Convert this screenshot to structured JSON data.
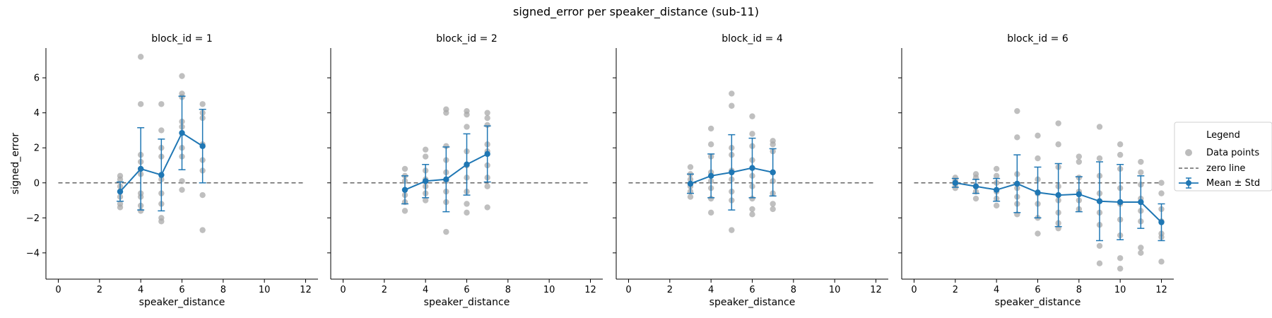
{
  "figure": {
    "title": "signed_error per speaker_distance (sub-11)"
  },
  "legend": {
    "title": "Legend",
    "placement": "right-center",
    "items": [
      "Data points",
      "zero line",
      "Mean ± Std"
    ]
  },
  "colors": {
    "points": "#a6a6a6",
    "mean": "#1f77b4",
    "zero_line": "#666666"
  },
  "chart_data": [
    {
      "type": "scatter",
      "title": "block_id = 1",
      "xlabel": "speaker_distance",
      "ylabel": "signed_error",
      "xlim": [
        -0.6,
        12.6
      ],
      "ylim": [
        -5.5,
        7.7
      ],
      "xticks": [
        0,
        2,
        4,
        6,
        8,
        10,
        12
      ],
      "yticks": [
        -4,
        -2,
        0,
        2,
        4,
        6
      ],
      "zero_line": 0,
      "points": [
        [
          3,
          0.4
        ],
        [
          3,
          0.2
        ],
        [
          3,
          -0.2
        ],
        [
          3,
          -0.5
        ],
        [
          3,
          -0.8
        ],
        [
          3,
          -1.2
        ],
        [
          3,
          -1.4
        ],
        [
          4,
          7.2
        ],
        [
          4,
          4.5
        ],
        [
          4,
          1.6
        ],
        [
          4,
          1.2
        ],
        [
          4,
          0.8
        ],
        [
          4,
          0.5
        ],
        [
          4,
          -0.6
        ],
        [
          4,
          -0.8
        ],
        [
          4,
          -1.3
        ],
        [
          4,
          -1.6
        ],
        [
          5,
          4.5
        ],
        [
          5,
          3.0
        ],
        [
          5,
          2.0
        ],
        [
          5,
          1.5
        ],
        [
          5,
          0.2
        ],
        [
          5,
          -0.6
        ],
        [
          5,
          -1.2
        ],
        [
          5,
          -2.0
        ],
        [
          5,
          -2.2
        ],
        [
          6,
          6.1
        ],
        [
          6,
          5.1
        ],
        [
          6,
          4.9
        ],
        [
          6,
          3.5
        ],
        [
          6,
          3.2
        ],
        [
          6,
          2.0
        ],
        [
          6,
          1.5
        ],
        [
          6,
          0.1
        ],
        [
          6,
          -0.4
        ],
        [
          7,
          4.5
        ],
        [
          7,
          4.0
        ],
        [
          7,
          3.7
        ],
        [
          7,
          2.2
        ],
        [
          7,
          1.3
        ],
        [
          7,
          0.7
        ],
        [
          7,
          -0.7
        ],
        [
          7,
          -2.7
        ]
      ],
      "mean_series": {
        "name": "Mean ± Std",
        "x": [
          3,
          4,
          5,
          6,
          7
        ],
        "mean": [
          -0.5,
          0.8,
          0.45,
          2.85,
          2.1
        ],
        "std": [
          0.55,
          2.35,
          2.05,
          2.1,
          2.1
        ]
      }
    },
    {
      "type": "scatter",
      "title": "block_id = 2",
      "xlabel": "speaker_distance",
      "ylabel": "",
      "xlim": [
        -0.6,
        12.6
      ],
      "ylim": [
        -5.5,
        7.7
      ],
      "xticks": [
        0,
        2,
        4,
        6,
        8,
        10,
        12
      ],
      "yticks": [
        -4,
        -2,
        0,
        2,
        4,
        6
      ],
      "zero_line": 0,
      "points": [
        [
          3,
          0.8
        ],
        [
          3,
          0.4
        ],
        [
          3,
          0.1
        ],
        [
          3,
          -0.4
        ],
        [
          3,
          -0.7
        ],
        [
          3,
          -1.1
        ],
        [
          3,
          -1.6
        ],
        [
          4,
          1.9
        ],
        [
          4,
          1.5
        ],
        [
          4,
          0.7
        ],
        [
          4,
          0.2
        ],
        [
          4,
          -0.2
        ],
        [
          4,
          -0.6
        ],
        [
          4,
          -1.0
        ],
        [
          5,
          4.2
        ],
        [
          5,
          4.0
        ],
        [
          5,
          2.1
        ],
        [
          5,
          1.3
        ],
        [
          5,
          0.6
        ],
        [
          5,
          0.1
        ],
        [
          5,
          -0.5
        ],
        [
          5,
          -1.1
        ],
        [
          5,
          -2.8
        ],
        [
          6,
          4.1
        ],
        [
          6,
          3.9
        ],
        [
          6,
          3.2
        ],
        [
          6,
          1.8
        ],
        [
          6,
          1.0
        ],
        [
          6,
          0.3
        ],
        [
          6,
          -0.5
        ],
        [
          6,
          -1.2
        ],
        [
          6,
          -1.7
        ],
        [
          7,
          4.0
        ],
        [
          7,
          3.7
        ],
        [
          7,
          3.3
        ],
        [
          7,
          2.2
        ],
        [
          7,
          1.8
        ],
        [
          7,
          1.0
        ],
        [
          7,
          0.3
        ],
        [
          7,
          -0.2
        ],
        [
          7,
          -1.4
        ]
      ],
      "mean_series": {
        "name": "Mean ± Std",
        "x": [
          3,
          4,
          5,
          6,
          7
        ],
        "mean": [
          -0.4,
          0.1,
          0.2,
          1.05,
          1.65
        ],
        "std": [
          0.8,
          0.95,
          1.85,
          1.75,
          1.6
        ]
      }
    },
    {
      "type": "scatter",
      "title": "block_id = 4",
      "xlabel": "speaker_distance",
      "ylabel": "",
      "xlim": [
        -0.6,
        12.6
      ],
      "ylim": [
        -5.5,
        7.7
      ],
      "xticks": [
        0,
        2,
        4,
        6,
        8,
        10,
        12
      ],
      "yticks": [
        -4,
        -2,
        0,
        2,
        4,
        6
      ],
      "zero_line": 0,
      "points": [
        [
          3,
          0.9
        ],
        [
          3,
          0.5
        ],
        [
          3,
          0.2
        ],
        [
          3,
          -0.2
        ],
        [
          3,
          -0.5
        ],
        [
          3,
          -0.8
        ],
        [
          4,
          3.1
        ],
        [
          4,
          2.2
        ],
        [
          4,
          1.5
        ],
        [
          4,
          0.6
        ],
        [
          4,
          0.1
        ],
        [
          4,
          -0.3
        ],
        [
          4,
          -0.9
        ],
        [
          4,
          -1.7
        ],
        [
          5,
          5.1
        ],
        [
          5,
          4.4
        ],
        [
          5,
          2.0
        ],
        [
          5,
          1.6
        ],
        [
          5,
          0.7
        ],
        [
          5,
          0.2
        ],
        [
          5,
          -0.5
        ],
        [
          5,
          -1.0
        ],
        [
          5,
          -2.7
        ],
        [
          6,
          3.8
        ],
        [
          6,
          2.8
        ],
        [
          6,
          2.1
        ],
        [
          6,
          1.3
        ],
        [
          6,
          0.4
        ],
        [
          6,
          -0.2
        ],
        [
          6,
          -0.9
        ],
        [
          6,
          -1.5
        ],
        [
          6,
          -1.8
        ],
        [
          7,
          2.4
        ],
        [
          7,
          2.2
        ],
        [
          7,
          1.8
        ],
        [
          7,
          0.6
        ],
        [
          7,
          0.1
        ],
        [
          7,
          -0.6
        ],
        [
          7,
          -1.2
        ],
        [
          7,
          -1.5
        ]
      ],
      "mean_series": {
        "name": "Mean ± Std",
        "x": [
          3,
          4,
          5,
          6,
          7
        ],
        "mean": [
          -0.05,
          0.4,
          0.6,
          0.85,
          0.6
        ],
        "std": [
          0.55,
          1.25,
          2.15,
          1.7,
          1.35
        ]
      }
    },
    {
      "type": "scatter",
      "title": "block_id = 6",
      "xlabel": "speaker_distance",
      "ylabel": "",
      "xlim": [
        -0.6,
        12.6
      ],
      "ylim": [
        -5.5,
        7.7
      ],
      "xticks": [
        0,
        2,
        4,
        6,
        8,
        10,
        12
      ],
      "yticks": [
        -4,
        -2,
        0,
        2,
        4,
        6
      ],
      "zero_line": 0,
      "points": [
        [
          2,
          0.3
        ],
        [
          2,
          0.1
        ],
        [
          2,
          -0.1
        ],
        [
          2,
          -0.3
        ],
        [
          3,
          0.5
        ],
        [
          3,
          0.3
        ],
        [
          3,
          -0.2
        ],
        [
          3,
          -0.5
        ],
        [
          3,
          -0.9
        ],
        [
          4,
          0.8
        ],
        [
          4,
          0.4
        ],
        [
          4,
          0.0
        ],
        [
          4,
          -0.5
        ],
        [
          4,
          -0.9
        ],
        [
          4,
          -1.3
        ],
        [
          5,
          4.1
        ],
        [
          5,
          2.6
        ],
        [
          5,
          0.5
        ],
        [
          5,
          -0.3
        ],
        [
          5,
          -0.8
        ],
        [
          5,
          -1.2
        ],
        [
          5,
          -1.8
        ],
        [
          6,
          2.7
        ],
        [
          6,
          1.4
        ],
        [
          6,
          0.2
        ],
        [
          6,
          -0.6
        ],
        [
          6,
          -1.2
        ],
        [
          6,
          -2.0
        ],
        [
          6,
          -2.9
        ],
        [
          7,
          3.4
        ],
        [
          7,
          2.2
        ],
        [
          7,
          0.9
        ],
        [
          7,
          -0.2
        ],
        [
          7,
          -1.0
        ],
        [
          7,
          -1.7
        ],
        [
          7,
          -2.3
        ],
        [
          7,
          -2.6
        ],
        [
          8,
          1.5
        ],
        [
          8,
          1.2
        ],
        [
          8,
          0.3
        ],
        [
          8,
          -0.5
        ],
        [
          8,
          -1.0
        ],
        [
          8,
          -1.5
        ],
        [
          9,
          3.2
        ],
        [
          9,
          1.4
        ],
        [
          9,
          0.4
        ],
        [
          9,
          -0.6
        ],
        [
          9,
          -1.7
        ],
        [
          9,
          -2.4
        ],
        [
          9,
          -3.6
        ],
        [
          9,
          -4.6
        ],
        [
          10,
          2.2
        ],
        [
          10,
          1.6
        ],
        [
          10,
          0.8
        ],
        [
          10,
          -0.3
        ],
        [
          10,
          -1.2
        ],
        [
          10,
          -2.1
        ],
        [
          10,
          -3.0
        ],
        [
          10,
          -4.3
        ],
        [
          10,
          -4.9
        ],
        [
          11,
          1.2
        ],
        [
          11,
          0.6
        ],
        [
          11,
          -0.1
        ],
        [
          11,
          -0.9
        ],
        [
          11,
          -1.6
        ],
        [
          11,
          -2.2
        ],
        [
          11,
          -3.7
        ],
        [
          11,
          -4.0
        ],
        [
          12,
          0.0
        ],
        [
          12,
          -0.6
        ],
        [
          12,
          -1.5
        ],
        [
          12,
          -2.2
        ],
        [
          12,
          -2.9
        ],
        [
          12,
          -3.1
        ],
        [
          12,
          -4.5
        ]
      ],
      "mean_series": {
        "name": "Mean ± Std",
        "x": [
          2,
          3,
          4,
          5,
          6,
          7,
          8,
          9,
          10,
          11,
          12
        ],
        "mean": [
          0.0,
          -0.2,
          -0.4,
          -0.05,
          -0.55,
          -0.7,
          -0.65,
          -1.05,
          -1.1,
          -1.1,
          -2.25
        ],
        "std": [
          0.25,
          0.4,
          0.65,
          1.65,
          1.45,
          1.8,
          1.0,
          2.25,
          2.15,
          1.5,
          1.05
        ]
      }
    }
  ]
}
